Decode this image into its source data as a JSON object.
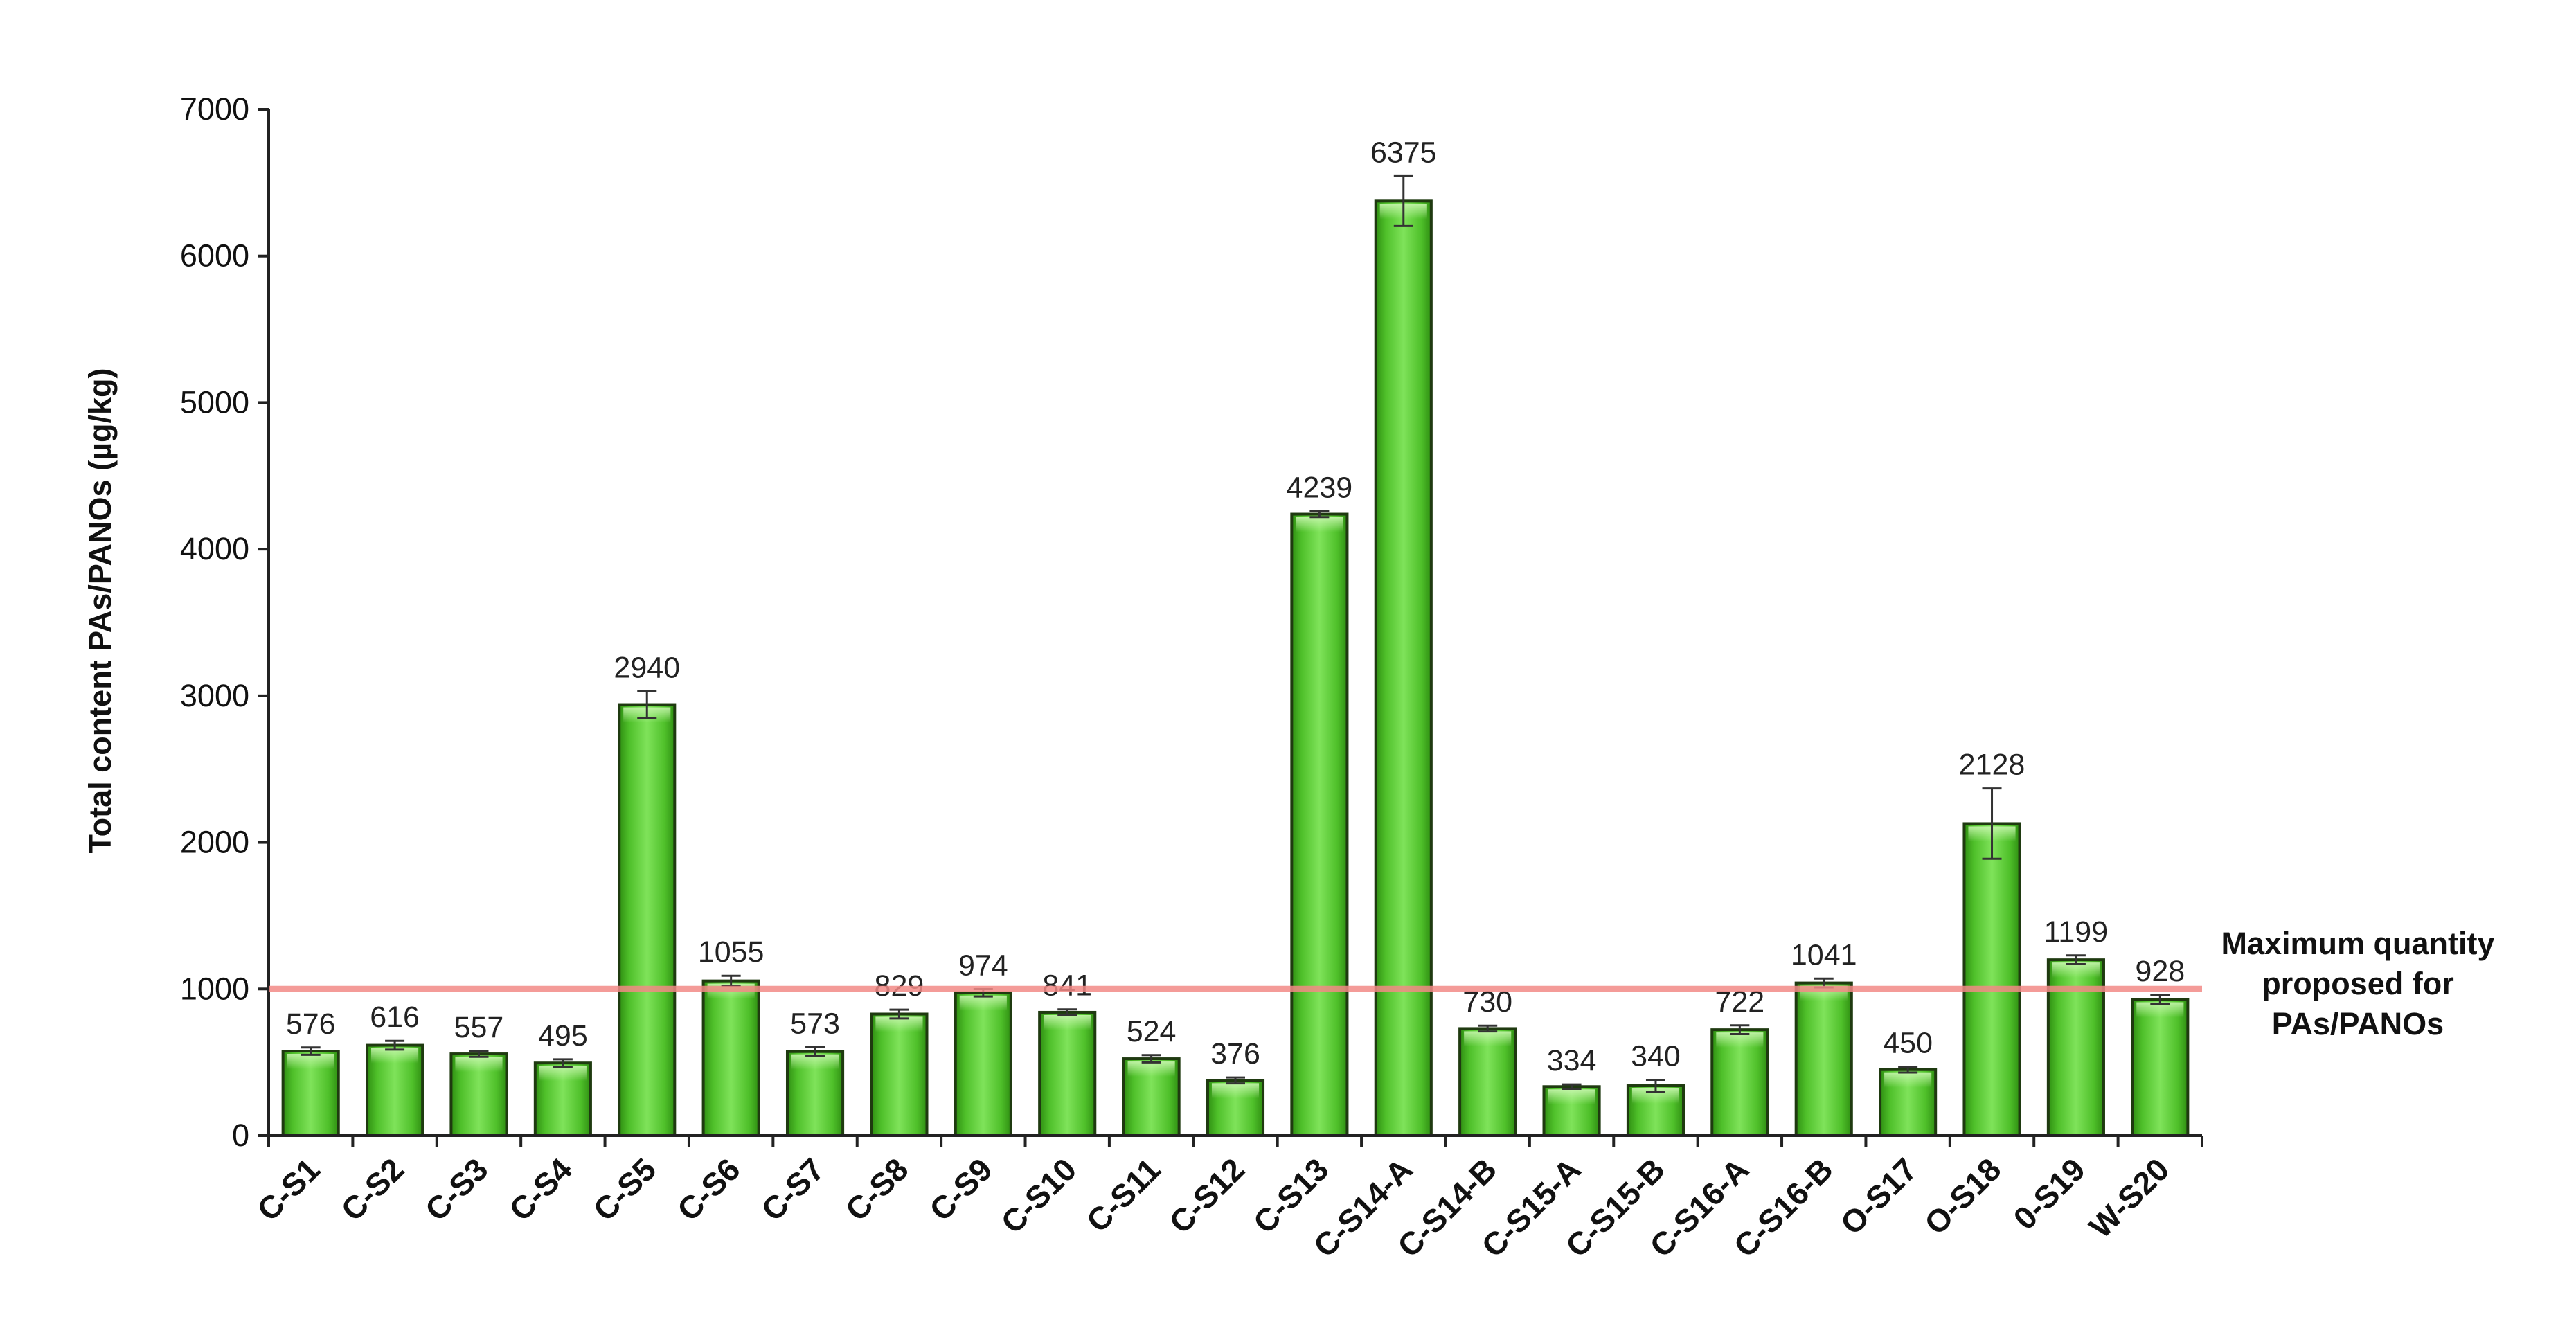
{
  "chart_data": {
    "type": "bar",
    "title": "",
    "xlabel": "",
    "ylabel": "Total content PAs/PANOs (µg/kg)",
    "ylim": [
      0,
      7000
    ],
    "yticks": [
      0,
      1000,
      2000,
      3000,
      4000,
      5000,
      6000,
      7000
    ],
    "grid": false,
    "bar_color": "#5fcf3a",
    "categories": [
      "C-S1",
      "C-S2",
      "C-S3",
      "C-S4",
      "C-S5",
      "C-S6",
      "C-S7",
      "C-S8",
      "C-S9",
      "C-S10",
      "C-S11",
      "C-S12",
      "C-S13",
      "C-S14-A",
      "C-S14-B",
      "C-S15-A",
      "C-S15-B",
      "C-S16-A",
      "C-S16-B",
      "O-S17",
      "O-S18",
      "0-S19",
      "W-S20"
    ],
    "values": [
      576,
      616,
      557,
      495,
      2940,
      1055,
      573,
      829,
      974,
      841,
      524,
      376,
      4239,
      6375,
      730,
      334,
      340,
      722,
      1041,
      450,
      2128,
      1199,
      928
    ],
    "errors": [
      25,
      30,
      20,
      25,
      90,
      35,
      30,
      30,
      25,
      20,
      25,
      20,
      20,
      170,
      20,
      15,
      40,
      30,
      30,
      20,
      240,
      30,
      30
    ],
    "reference_line": {
      "value": 1000,
      "color": "#f28a86",
      "label_lines": [
        "Maximum quantity",
        "proposed for",
        "PAs/PANOs"
      ]
    }
  }
}
